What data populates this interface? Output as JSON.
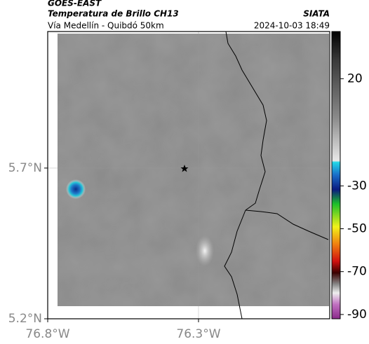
{
  "header": {
    "satellite": "GOES-EAST",
    "product": "Temperatura de Brillo CH13",
    "route": "Vía Medellín - Quibdó 50km",
    "source": "SIATA",
    "timestamp": "2024-10-03 18:49"
  },
  "map": {
    "xlim": [
      -76.8,
      -75.865
    ],
    "ylim": [
      5.2,
      6.153
    ],
    "xticks": [
      {
        "value": -76.8,
        "label": "76.8°W"
      },
      {
        "value": -76.3,
        "label": "76.3°W"
      }
    ],
    "yticks": [
      {
        "value": 5.2,
        "label": "5.2°N"
      },
      {
        "value": 5.7,
        "label": "5.7°N"
      }
    ],
    "grid": true
  },
  "colorbar": {
    "lim": [
      42,
      -92
    ],
    "ticks": [
      20,
      -30,
      -50,
      -70,
      -90
    ]
  }
}
